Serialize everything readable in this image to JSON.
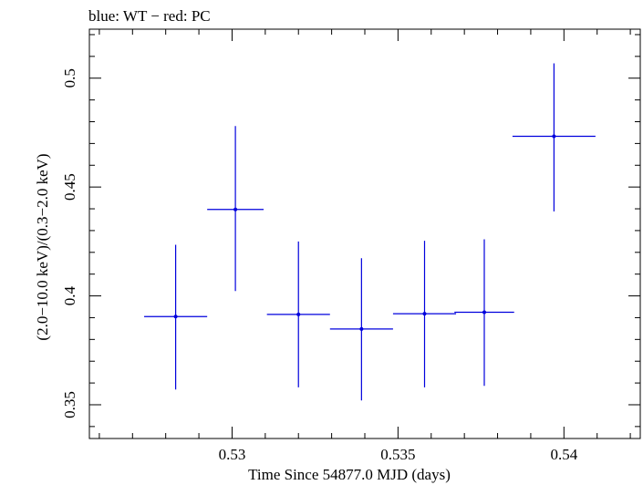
{
  "chart_data": {
    "type": "scatter",
    "title": "blue: WT − red: PC",
    "xlabel": "Time Since 54877.0 MJD (days)",
    "ylabel": "(2.0−10.0 keV)/(0.3−2.0 keV)",
    "xlim": [
      0.5257,
      0.5423
    ],
    "ylim": [
      0.3345,
      0.5225
    ],
    "x_ticks": [
      {
        "value": 0.53,
        "label": "0.53"
      },
      {
        "value": 0.535,
        "label": "0.535"
      },
      {
        "value": 0.54,
        "label": "0.54"
      }
    ],
    "y_ticks": [
      {
        "value": 0.35,
        "label": "0.35"
      },
      {
        "value": 0.4,
        "label": "0.4"
      },
      {
        "value": 0.45,
        "label": "0.45"
      },
      {
        "value": 0.5,
        "label": "0.5"
      }
    ],
    "x_minor_step": 0.001,
    "y_minor_step": 0.01,
    "grid": false,
    "series": [
      {
        "name": "WT",
        "color": "#0000dd",
        "points": [
          {
            "x": 0.5283,
            "xerr": 0.00095,
            "y": 0.3905,
            "yerr_low": 0.0335,
            "yerr_high": 0.033
          },
          {
            "x": 0.5301,
            "xerr": 0.00085,
            "y": 0.4397,
            "yerr_low": 0.0375,
            "yerr_high": 0.0383
          },
          {
            "x": 0.532,
            "xerr": 0.00095,
            "y": 0.3915,
            "yerr_low": 0.0335,
            "yerr_high": 0.0335
          },
          {
            "x": 0.5339,
            "xerr": 0.00095,
            "y": 0.3848,
            "yerr_low": 0.0328,
            "yerr_high": 0.0325
          },
          {
            "x": 0.5358,
            "xerr": 0.00095,
            "y": 0.3918,
            "yerr_low": 0.0338,
            "yerr_high": 0.0335
          },
          {
            "x": 0.5376,
            "xerr": 0.0009,
            "y": 0.3925,
            "yerr_low": 0.0338,
            "yerr_high": 0.0335
          },
          {
            "x": 0.5397,
            "xerr": 0.00125,
            "y": 0.4733,
            "yerr_low": 0.0345,
            "yerr_high": 0.0335
          }
        ]
      }
    ]
  }
}
